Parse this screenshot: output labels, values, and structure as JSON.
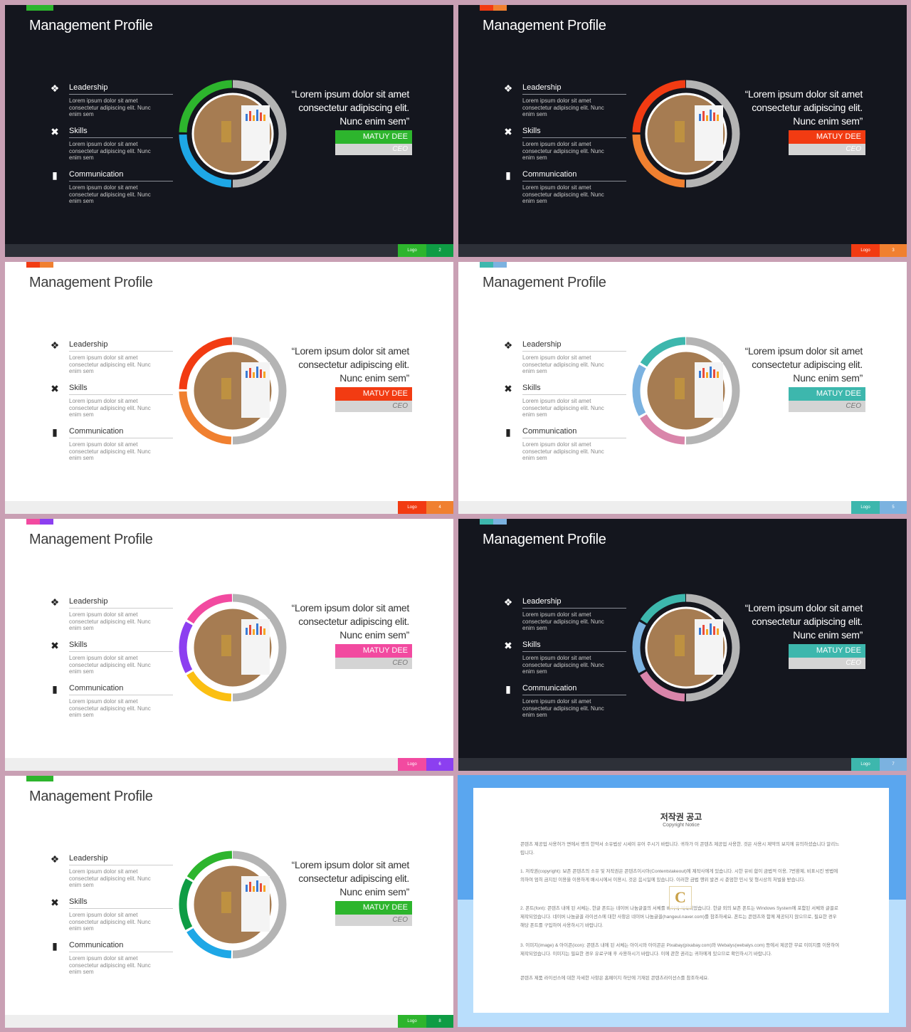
{
  "slides": [
    {
      "theme": "dark",
      "accent": [
        "#2db52d",
        "#2db52d"
      ],
      "ring": [
        "#2db52d",
        "#1ea7e6"
      ],
      "name_color": "#2db52d",
      "logo_color": "#2db52d",
      "page_color": "#0e9c44",
      "page": "2"
    },
    {
      "theme": "dark",
      "accent": [
        "#f23b12",
        "#f08030"
      ],
      "ring": [
        "#f23b12",
        "#f08030"
      ],
      "name_color": "#f23b12",
      "logo_color": "#f23b12",
      "page_color": "#f08030",
      "page": "3"
    },
    {
      "theme": "light",
      "accent": [
        "#f23b12",
        "#f08030"
      ],
      "ring": [
        "#f23b12",
        "#f08030"
      ],
      "name_color": "#f23b12",
      "logo_color": "#f23b12",
      "page_color": "#f08030",
      "page": "4"
    },
    {
      "theme": "light",
      "accent": [
        "#3db7ad",
        "#7bb2e0"
      ],
      "ring": [
        "#3db7ad",
        "#7bb2e0",
        "#d985aa"
      ],
      "name_color": "#3db7ad",
      "logo_color": "#3db7ad",
      "page_color": "#7bb2e0",
      "page": "5"
    },
    {
      "theme": "light",
      "accent": [
        "#f24aa0",
        "#8c3ff0"
      ],
      "ring": [
        "#f24aa0",
        "#8c3ff0",
        "#fbbf12"
      ],
      "name_color": "#f24aa0",
      "logo_color": "#f24aa0",
      "page_color": "#8c3ff0",
      "page": "6"
    },
    {
      "theme": "dark",
      "accent": [
        "#3db7ad",
        "#7bb2e0"
      ],
      "ring": [
        "#3db7ad",
        "#7bb2e0",
        "#d985aa"
      ],
      "name_color": "#3db7ad",
      "logo_color": "#3db7ad",
      "page_color": "#7bb2e0",
      "page": "7"
    },
    {
      "theme": "light",
      "accent": [
        "#2db52d",
        "#2db52d"
      ],
      "ring": [
        "#2db52d",
        "#0e9c44",
        "#1ea7e6"
      ],
      "name_color": "#2db52d",
      "logo_color": "#2db52d",
      "page_color": "#0e9c44",
      "page": "8"
    }
  ],
  "content": {
    "title": "Management Profile",
    "items": [
      {
        "icon": "people-icon",
        "label": "Leadership",
        "desc": "Lorem ipsum dolor sit amet consectetur adipiscing elit. Nunc enim sem"
      },
      {
        "icon": "tools-icon",
        "label": "Skills",
        "desc": "Lorem ipsum dolor sit amet consectetur adipiscing elit. Nunc enim sem"
      },
      {
        "icon": "chat-icon",
        "label": "Communication",
        "desc": "Lorem ipsum dolor sit amet consectetur adipiscing elit. Nunc enim sem"
      }
    ],
    "quote": "“Lorem ipsum dolor sit amet  consectetur adipiscing elit. Nunc enim sem”",
    "name": "MATUY DEE",
    "role": "CEO",
    "logo": "Logo"
  },
  "notice": {
    "title": "저작권 공고",
    "subtitle": "Copyright Notice",
    "paragraphs": [
      "콘텐츠 제공업 사용허가 면에서 명의 한약서 소유법상 시세이 유어 주시기 바랍니다. 귀하가 이 콘텐츠 제공업 사용한, 것은 사용시 제약의 보지에 유의하셨습니다 알리느립니다.",
      "1. 저작권(copyright): 보존 콘텐츠의 소유 및 저작권은 콘텐츠이시아(Contentstakeout)에 제작사에게 있습니다. 시한 유비 합이 금법적 이용, 7번환제, 비표시킨 방법에 의하여 엄히 금지된 이용을 이용하게 배시시에서 이용시, 것은 음시일에 있습니다. 이러한 금법 행위 발견 시 준엄한 민시 및 형시상의 처벌을 받습니다.",
      "2. 폰트(font): 콘텐츠 내에 된 서체는, 한글 폰트는 네이버 나눔글꼴의 서체를 바이에 제작되었습니다. 한글 외의 보존 폰트는 Windows System에 포함된 서체와 글꼴로 제작되었습니다. 네이버 나눔글꼴 라이선스에 대한 사항은 네이버 나눔글꼴(hangeul.naver.com)를 참조하세요. 폰트는 콘텐츠와 함께 제공되지 않으므로, 필요한 경우 해당 폰트를 구입하여 사용하시기 바랍니다.",
      "3. 이미지(image) & 아이콘(icon): 콘텐츠 내에 된 서체는 아이시와 아이콘은 Pixabay(pixabay.com)와 Webalys(webalys.com) 등에서 제공한 무료 이미지를 이용하여 제작되었습니다. 이미지는 필요한 경우 유료구매 후 사용하시기 바랍니다. 이에 관한 권리는 귀하에게 있으므로 확인하시기 바랍니다.",
      "콘텐츠 제품 라이선스에 대한 자세한 사항은 홈페이지 하단에 기재된 콘텐츠라이선스를 참조하세요."
    ],
    "watermark": "C"
  }
}
